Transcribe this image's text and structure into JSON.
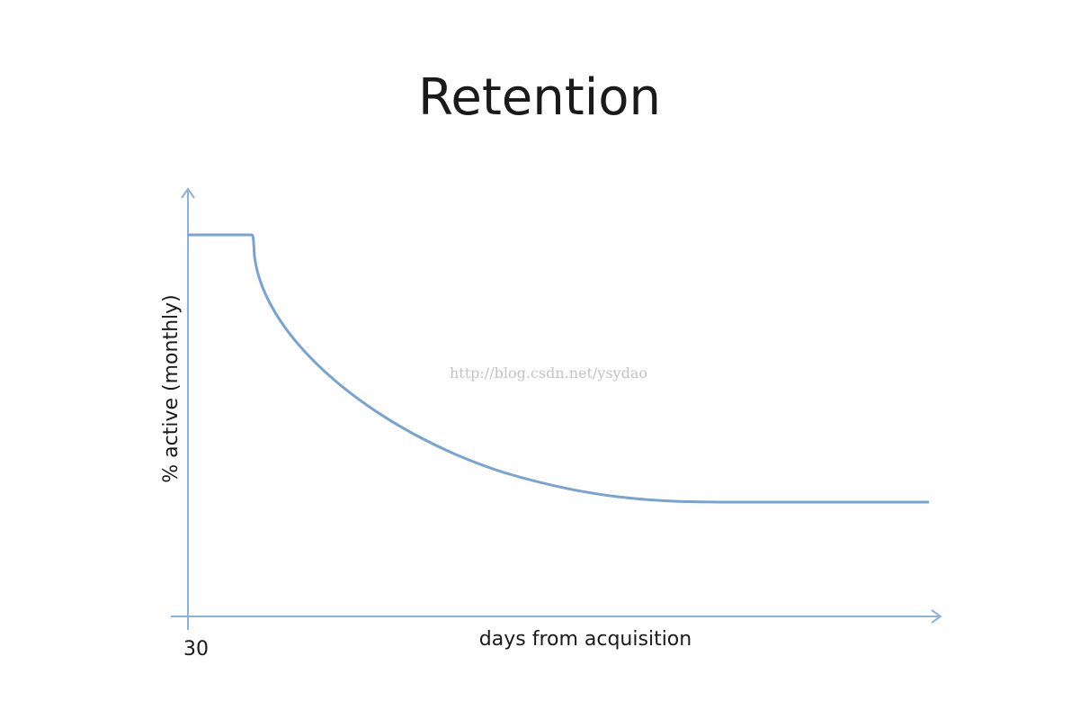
{
  "title": "Retention",
  "y_axis_label": "% active (monthly)",
  "x_axis_label": "days from acquisition",
  "x_tick": "30",
  "watermark": "http://blog.csdn.net/ysydao"
}
